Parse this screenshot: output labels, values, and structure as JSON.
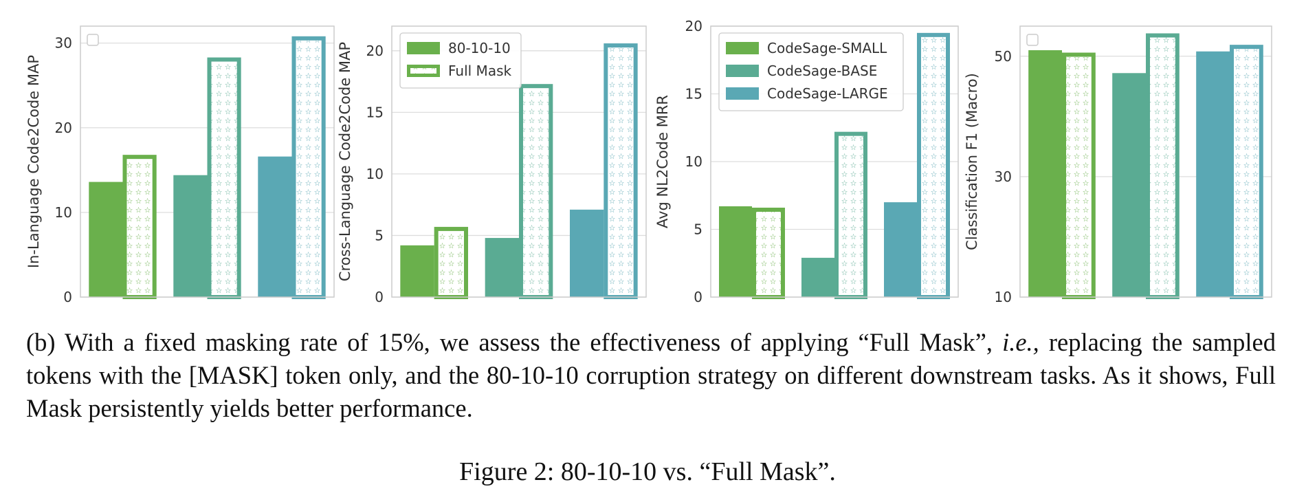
{
  "colors": {
    "small": "#6ab04c",
    "base": "#5aab93",
    "large": "#5aa8b4",
    "grid": "#dddddd",
    "spine": "#cccccc"
  },
  "chart_data": [
    {
      "type": "bar",
      "ylabel": "In-Language Code2Code MAP",
      "ylim": [
        0,
        32
      ],
      "yticks": [
        0,
        10,
        20,
        30
      ],
      "ytick_labels": [
        "0",
        "10",
        "20",
        "30"
      ],
      "groups": [
        "CodeSage-SMALL",
        "CodeSage-BASE",
        "CodeSage-LARGE"
      ],
      "series": [
        {
          "name": "80-10-10",
          "values": [
            13.6,
            14.4,
            16.6
          ]
        },
        {
          "name": "Full Mask",
          "values": [
            16.8,
            28.3,
            30.8
          ]
        }
      ],
      "legend": "empty",
      "grid": true
    },
    {
      "type": "bar",
      "ylabel": "Cross-Language Code2Code MAP",
      "ylim": [
        0,
        22
      ],
      "yticks": [
        0,
        5,
        10,
        15,
        20
      ],
      "ytick_labels": [
        "0",
        "5",
        "10",
        "15",
        "20"
      ],
      "groups": [
        "CodeSage-SMALL",
        "CodeSage-BASE",
        "CodeSage-LARGE"
      ],
      "series": [
        {
          "name": "80-10-10",
          "values": [
            4.2,
            4.8,
            7.1
          ]
        },
        {
          "name": "Full Mask",
          "values": [
            5.7,
            17.3,
            20.6
          ]
        }
      ],
      "legend": "top-left",
      "legend_entries": [
        "80-10-10",
        "Full Mask"
      ],
      "grid": true
    },
    {
      "type": "bar",
      "ylabel": "Avg NL2Code MRR",
      "ylim": [
        0,
        20
      ],
      "yticks": [
        0,
        5,
        10,
        15,
        20
      ],
      "ytick_labels": [
        "0",
        "5",
        "10",
        "15",
        "20"
      ],
      "groups": [
        "CodeSage-SMALL",
        "CodeSage-BASE",
        "CodeSage-LARGE"
      ],
      "series": [
        {
          "name": "80-10-10",
          "values": [
            6.7,
            2.9,
            7.0
          ]
        },
        {
          "name": "Full Mask",
          "values": [
            6.6,
            12.2,
            19.5
          ]
        }
      ],
      "legend": "top-left",
      "legend_entries": [
        "CodeSage-SMALL",
        "CodeSage-BASE",
        "CodeSage-LARGE"
      ],
      "grid": true
    },
    {
      "type": "bar",
      "ylabel": "Classification F1 (Macro)",
      "ylim": [
        10,
        55
      ],
      "yticks": [
        10,
        30,
        50
      ],
      "ytick_labels": [
        "10",
        "30",
        "50"
      ],
      "groups": [
        "CodeSage-SMALL",
        "CodeSage-BASE",
        "CodeSage-LARGE"
      ],
      "series": [
        {
          "name": "80-10-10",
          "values": [
            51.0,
            47.2,
            50.8
          ]
        },
        {
          "name": "Full Mask",
          "values": [
            50.6,
            53.8,
            51.9
          ]
        }
      ],
      "legend": "empty",
      "grid": true
    }
  ],
  "caption": {
    "prefix": "(b) With a fixed masking rate of 15%, we assess the effectiveness of applying “Full Mask”, ",
    "ie": "i.e.,",
    "suffix": " replacing the sampled tokens with the [MASK] token only, and the 80-10-10 corruption strategy on different downstream tasks. As it shows, Full Mask persistently yields better performance."
  },
  "figure_title": "Figure 2: 80-10-10 vs. “Full Mask”."
}
